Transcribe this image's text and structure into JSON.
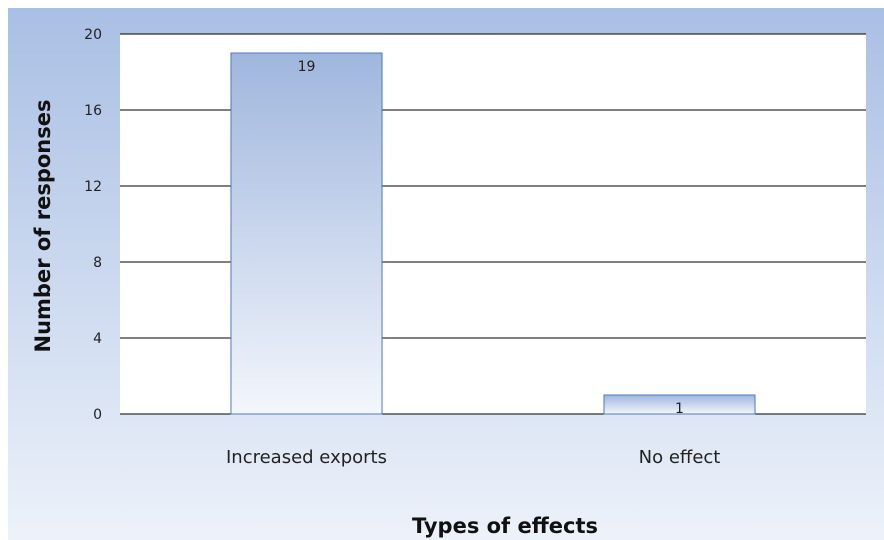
{
  "chart_data": {
    "type": "bar",
    "title": "",
    "xlabel": "Types of effects",
    "ylabel": "Number of responses",
    "categories": [
      "Increased exports",
      "No effect"
    ],
    "values": [
      19,
      1
    ],
    "data_labels": [
      "19",
      "1"
    ],
    "ylim": [
      0,
      20
    ],
    "yticks": [
      0,
      4,
      8,
      12,
      16,
      20
    ],
    "grid": true,
    "legend": "none"
  },
  "colors": {
    "background_top": "#a9bfe4",
    "background_bottom": "#edf2fa",
    "plot_area": "#ffffff",
    "bar_top": "#9fb6dd",
    "bar_bottom": "#f3f6fc",
    "bar_border": "#4a7ac2",
    "gridline": "#000000"
  }
}
